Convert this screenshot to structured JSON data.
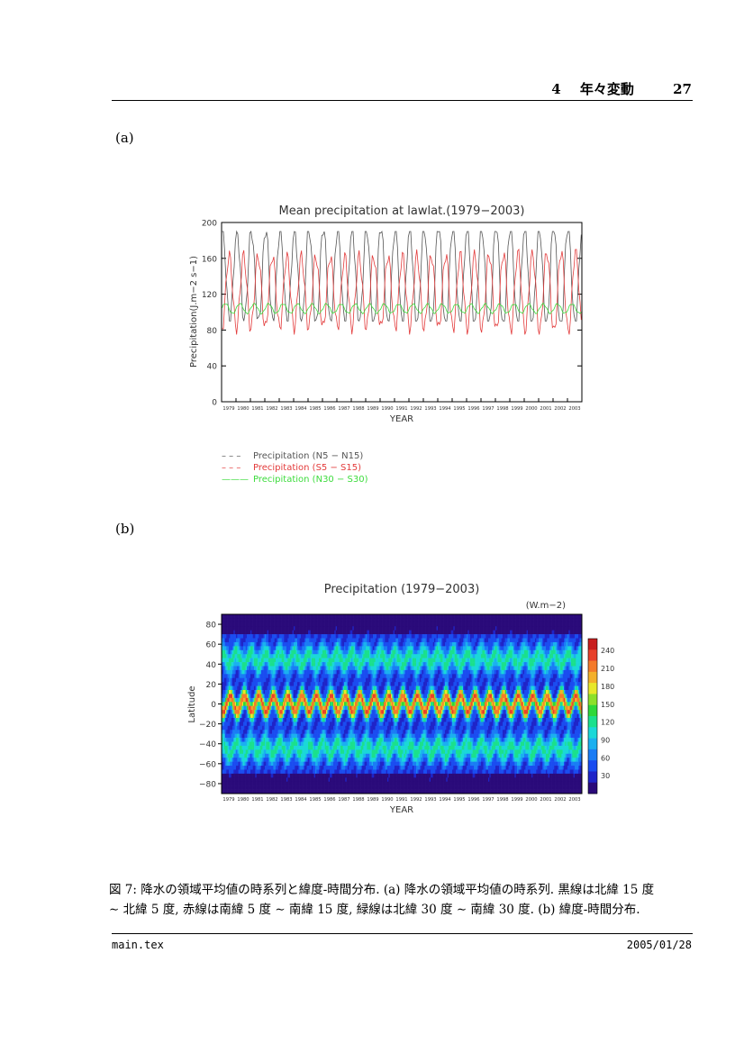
{
  "header": {
    "section_number": "4",
    "section_title": "年々変動",
    "page_number": "27"
  },
  "panels": {
    "a_label": "(a)",
    "b_label": "(b)"
  },
  "chart_data": [
    {
      "type": "line",
      "title": "Mean precipitation at lawlat.(1979−2003)",
      "xlabel": "YEAR",
      "ylabel": "Precipitation(J.m−2 s−1)",
      "ylim": [
        0,
        200
      ],
      "yticks": [
        "0",
        "40",
        "80",
        "120",
        "160",
        "200"
      ],
      "categories": [
        "1979",
        "1980",
        "1981",
        "1982",
        "1983",
        "1984",
        "1985",
        "1986",
        "1987",
        "1988",
        "1989",
        "1990",
        "1991",
        "1992",
        "1993",
        "1994",
        "1995",
        "1996",
        "1997",
        "1998",
        "1999",
        "2000",
        "2001",
        "2002",
        "2003"
      ],
      "legend_placement": "bottom",
      "series": [
        {
          "name": "Precipitation (N5 − N15)",
          "color": "#555555",
          "line_style": "– – –",
          "low": 90,
          "high": 190,
          "phase": 0.0
        },
        {
          "name": "Precipitation (S5 − S15)",
          "color": "#e33b3b",
          "line_style": "– – –",
          "low": 75,
          "high": 170,
          "phase": 0.5
        },
        {
          "name": "Precipitation (N30 − S30)",
          "color": "#3ddc3d",
          "line_style": "———",
          "low": 98,
          "high": 110,
          "phase": 0.25
        }
      ]
    },
    {
      "type": "heatmap",
      "title": "Precipitation   (1979−2003)",
      "unit_label": "(W.m−2)",
      "xlabel": "YEAR",
      "ylabel": "Latitude",
      "ylim": [
        -90,
        90
      ],
      "yticks": [
        "80",
        "60",
        "40",
        "20",
        "0",
        "−20",
        "−40",
        "−60",
        "−80"
      ],
      "categories": [
        "1979",
        "1980",
        "1981",
        "1982",
        "1983",
        "1984",
        "1985",
        "1986",
        "1987",
        "1988",
        "1989",
        "1990",
        "1991",
        "1992",
        "1993",
        "1994",
        "1995",
        "1996",
        "1997",
        "1998",
        "1999",
        "2000",
        "2001",
        "2002",
        "2003"
      ],
      "colorbar_ticks": [
        "240",
        "210",
        "180",
        "150",
        "120",
        "90",
        "60",
        "30"
      ],
      "colorbar_range": [
        0,
        260
      ],
      "colorbar_colors": [
        "#2a0a7a",
        "#1f24c8",
        "#1a4cf0",
        "#1a7cf5",
        "#1ab0f0",
        "#1ad8d8",
        "#1ae08c",
        "#2ed83a",
        "#8ce02a",
        "#e8e82a",
        "#f4b02a",
        "#f47a2a",
        "#e8402a",
        "#c81e1e"
      ]
    }
  ],
  "caption": {
    "line1": "図 7: 降水の領域平均値の時系列と緯度-時間分布. (a) 降水の領域平均値の時系列. 黒線は北緯 15 度",
    "line2": "∼ 北緯 5 度, 赤線は南緯 5 度 ∼ 南緯 15 度, 緑線は北緯 30 度 ∼ 南緯 30 度. (b) 緯度-時間分布."
  },
  "footer": {
    "left": "main.tex",
    "right": "2005/01/28"
  }
}
